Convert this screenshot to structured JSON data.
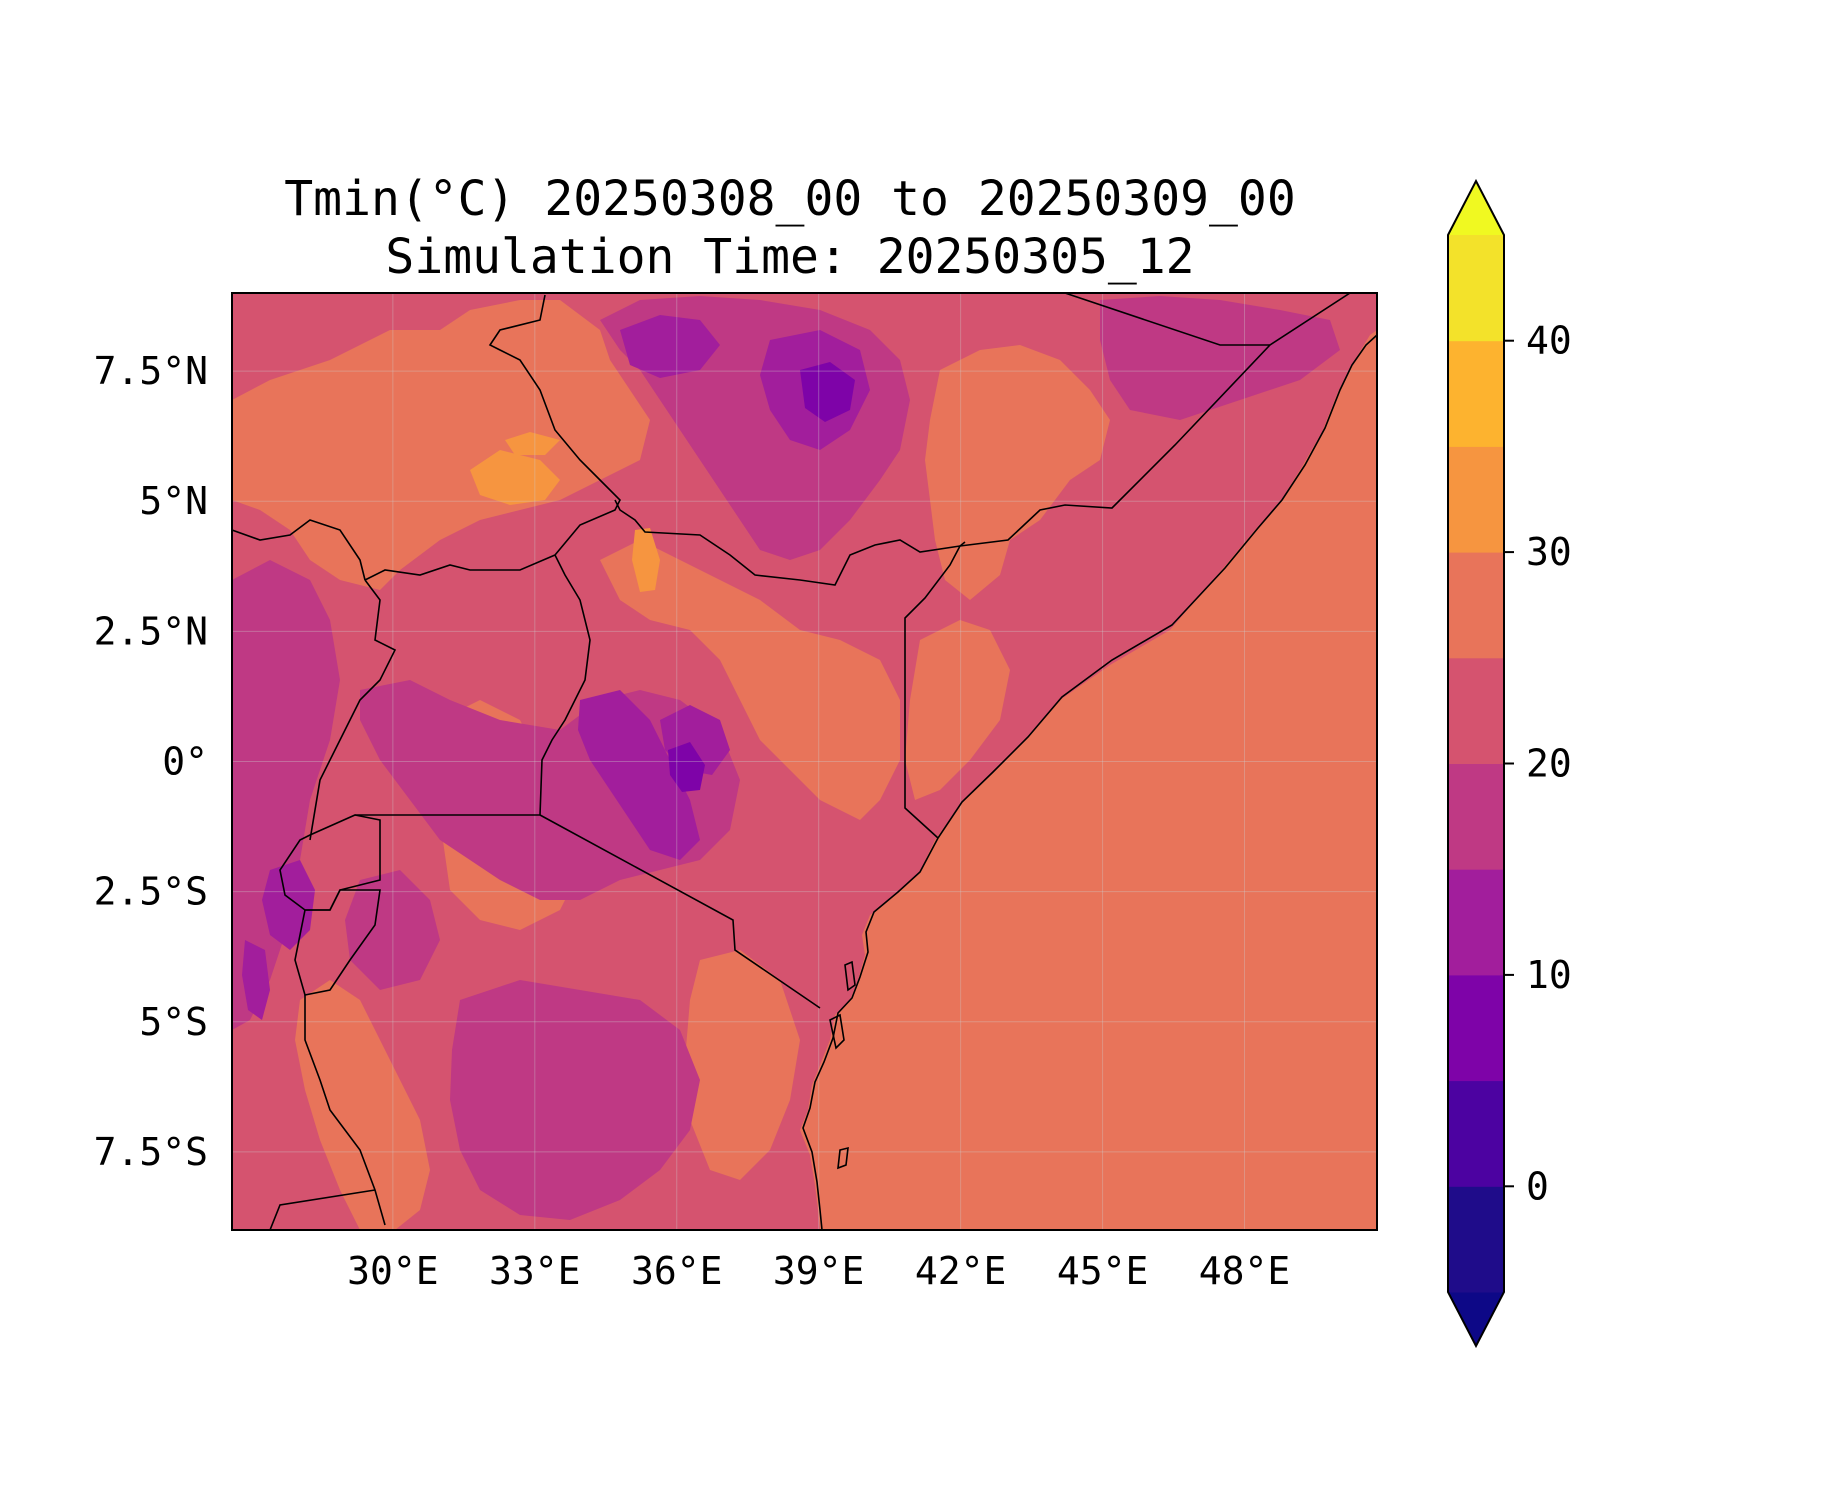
{
  "title": {
    "line1": "Tmin(°C) 20250308_00 to 20250309_00",
    "line2": "Simulation Time: 20250305_12"
  },
  "map": {
    "lon_range": [
      26.6,
      50.8
    ],
    "lat_range": [
      -9.0,
      9.0
    ],
    "gridlines": true,
    "lon_ticks": [
      {
        "value": 30,
        "label": "30°E"
      },
      {
        "value": 33,
        "label": "33°E"
      },
      {
        "value": 36,
        "label": "36°E"
      },
      {
        "value": 39,
        "label": "39°E"
      },
      {
        "value": 42,
        "label": "42°E"
      },
      {
        "value": 45,
        "label": "45°E"
      },
      {
        "value": 48,
        "label": "48°E"
      }
    ],
    "lat_ticks": [
      {
        "value": 7.5,
        "label": "7.5°N"
      },
      {
        "value": 5,
        "label": "5°N"
      },
      {
        "value": 2.5,
        "label": "2.5°N"
      },
      {
        "value": 0,
        "label": "0°"
      },
      {
        "value": -2.5,
        "label": "2.5°S"
      },
      {
        "value": -5,
        "label": "5°S"
      },
      {
        "value": -7.5,
        "label": "7.5°S"
      }
    ]
  },
  "colorbar": {
    "levels": [
      -5,
      0,
      5,
      10,
      15,
      20,
      25,
      30,
      35,
      40,
      45
    ],
    "colors": [
      "#240691",
      "#5302a3",
      "#8b0aa5",
      "#b83289",
      "#db5c68",
      "#f48849",
      "#febc2a",
      "#f0f921"
    ],
    "level_colors": [
      {
        "min": -5,
        "max": 0,
        "color": "#1f0c8a"
      },
      {
        "min": 0,
        "max": 5,
        "color": "#4c02a1"
      },
      {
        "min": 5,
        "max": 10,
        "color": "#7e03a8"
      },
      {
        "min": 10,
        "max": 15,
        "color": "#a21e9c"
      },
      {
        "min": 15,
        "max": 20,
        "color": "#bf3984"
      },
      {
        "min": 20,
        "max": 25,
        "color": "#d5536f"
      },
      {
        "min": 25,
        "max": 30,
        "color": "#e8745a"
      },
      {
        "min": 30,
        "max": 35,
        "color": "#f69540"
      },
      {
        "min": 35,
        "max": 40,
        "color": "#fdb32f"
      },
      {
        "min": 40,
        "max": 45,
        "color": "#f3e22a"
      }
    ],
    "under_color": "#0d0887",
    "over_color": "#f0f921",
    "ticks": [
      {
        "value": 0,
        "label": "0"
      },
      {
        "value": 10,
        "label": "10"
      },
      {
        "value": 20,
        "label": "20"
      },
      {
        "value": 30,
        "label": "30"
      },
      {
        "value": 40,
        "label": "40"
      }
    ],
    "extend": "both"
  }
}
